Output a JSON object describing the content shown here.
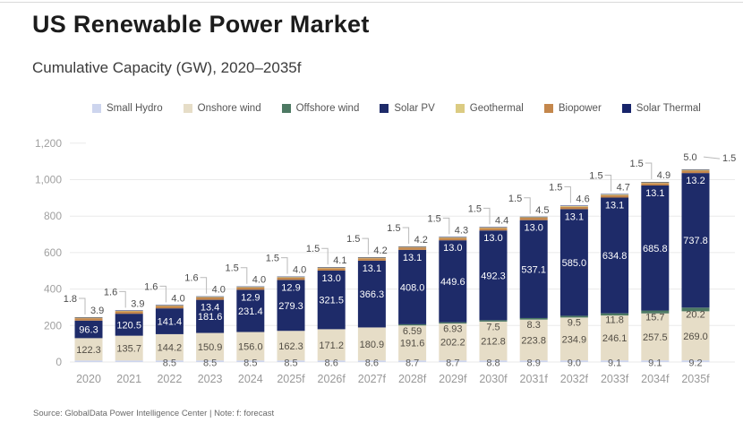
{
  "header": {
    "title": "US Renewable Power Market",
    "subtitle": "Cumulative Capacity (GW), 2020–2035f"
  },
  "footer": {
    "source_note": "Source: GlobalData Power Intelligence Center | Note: f: forecast"
  },
  "chart_data": {
    "type": "bar",
    "stacked": true,
    "title": "US Renewable Power Market",
    "subtitle": "Cumulative Capacity (GW), 2020–2035f",
    "xlabel": "",
    "ylabel": "Cumulative Capacity (GW)",
    "ylim": [
      0,
      1200
    ],
    "ytick_step": 200,
    "ytick_labels": [
      "0",
      "200",
      "400",
      "600",
      "800",
      "1,000",
      "1,200"
    ],
    "grid": true,
    "legend_position": "top",
    "categories": [
      "2020",
      "2021",
      "2022",
      "2023",
      "2024",
      "2025f",
      "2026f",
      "2027f",
      "2028f",
      "2029f",
      "2030f",
      "2031f",
      "2032f",
      "2033f",
      "2034f",
      "2035f"
    ],
    "legend_order": [
      "Small Hydro",
      "Onshore wind",
      "Offshore wind",
      "Solar PV",
      "Geothermal",
      "Biopower",
      "Solar Thermal"
    ],
    "stack_order_bottom_to_top": [
      "Small Hydro",
      "Onshore wind",
      "Offshore wind",
      "Solar PV",
      "Biopower",
      "Geothermal",
      "Solar Thermal"
    ],
    "series": [
      {
        "name": "Small Hydro",
        "color": "#cdd5ee",
        "values": [
          8.5,
          8.5,
          8.5,
          8.5,
          8.5,
          8.5,
          8.6,
          8.6,
          8.7,
          8.7,
          8.8,
          8.9,
          9.0,
          9.1,
          9.1,
          9.2
        ],
        "labels": [
          null,
          null,
          "8.5",
          "8.5",
          "8.5",
          "8.5",
          "8.6",
          "8.6",
          "8.7",
          "8.7",
          "8.8",
          "8.9",
          "9.0",
          "9.1",
          "9.1",
          "9.2"
        ]
      },
      {
        "name": "Onshore wind",
        "color": "#e6ddc7",
        "values": [
          122.3,
          135.7,
          144.2,
          150.9,
          156.0,
          162.3,
          171.2,
          180.9,
          191.6,
          202.2,
          212.8,
          223.8,
          234.9,
          246.1,
          257.5,
          269.0
        ],
        "labels": [
          "122.3",
          "135.7",
          "144.2",
          "150.9",
          "156.0",
          "162.3",
          "171.2",
          "180.9",
          "191.6",
          "202.2",
          "212.8",
          "223.8",
          "234.9",
          "246.1",
          "257.5",
          "269.0"
        ]
      },
      {
        "name": "Offshore wind",
        "color": "#4d7963",
        "values": [
          0,
          0,
          0,
          0,
          0,
          0,
          0,
          0,
          6.59,
          6.93,
          7.5,
          8.3,
          9.5,
          11.8,
          15.7,
          20.2
        ],
        "labels": [
          null,
          null,
          null,
          null,
          null,
          null,
          null,
          null,
          "6.59",
          "6.93",
          "7.5",
          "8.3",
          "9.5",
          "11.8",
          "15.7",
          "20.2"
        ]
      },
      {
        "name": "Solar PV",
        "color": "#1e2b69",
        "values": [
          96.3,
          120.5,
          141.4,
          181.6,
          231.4,
          279.3,
          321.5,
          366.3,
          408.0,
          449.6,
          492.3,
          537.1,
          585.0,
          634.8,
          685.8,
          737.8
        ],
        "labels": [
          "96.3",
          "120.5",
          "141.4",
          "181.6",
          "231.4",
          "279.3",
          "321.5",
          "366.3",
          "408.0",
          "449.6",
          "492.3",
          "537.1",
          "585.0",
          "634.8",
          "685.8",
          "737.8"
        ]
      },
      {
        "name": "Geothermal",
        "color": "#dbcb82",
        "values": [
          3.9,
          3.9,
          4.0,
          4.0,
          4.0,
          4.0,
          4.1,
          4.2,
          4.2,
          4.3,
          4.4,
          4.5,
          4.6,
          4.7,
          4.9,
          5.0
        ],
        "labels": [
          "3.9",
          "3.9",
          "4.0",
          "4.0",
          "4.0",
          "4.0",
          "4.1",
          "4.2",
          "4.2",
          "4.3",
          "4.4",
          "4.5",
          "4.6",
          "4.7",
          "4.9",
          "5.0"
        ]
      },
      {
        "name": "Biopower",
        "color": "#c4874c",
        "values": [
          13.0,
          13.0,
          13.0,
          13.4,
          12.9,
          12.9,
          13.0,
          13.1,
          13.1,
          13.0,
          13.0,
          13.0,
          13.1,
          13.1,
          13.1,
          13.2
        ],
        "labels": [
          null,
          null,
          null,
          "13.4",
          "12.9",
          "12.9",
          "13.0",
          "13.1",
          "13.1",
          "13.0",
          "13.0",
          "13.0",
          "13.1",
          "13.1",
          "13.1",
          "13.2"
        ]
      },
      {
        "name": "Solar Thermal",
        "color": "#17246a",
        "values": [
          1.8,
          1.6,
          1.6,
          1.6,
          1.5,
          1.5,
          1.5,
          1.5,
          1.5,
          1.5,
          1.5,
          1.5,
          1.5,
          1.5,
          1.5,
          1.5
        ],
        "labels": [
          "1.8",
          "1.6",
          "1.6",
          "1.6",
          "1.5",
          "1.5",
          "1.5",
          "1.5",
          "1.5",
          "1.5",
          "1.5",
          "1.5",
          "1.5",
          "1.5",
          "1.5",
          "1.5"
        ]
      }
    ],
    "style": {
      "grid_color": "#eaeaea",
      "axis_label_color": "#a0a0a0",
      "category_label_color": "#999999",
      "callout_label_color": "#4d4d4d",
      "dark_value_label_color": "#524d44",
      "light_value_label_color": "#ffffff",
      "bottom_value_label_color": "#5d5d5d",
      "leader_line_color": "#b9b9b9"
    }
  }
}
